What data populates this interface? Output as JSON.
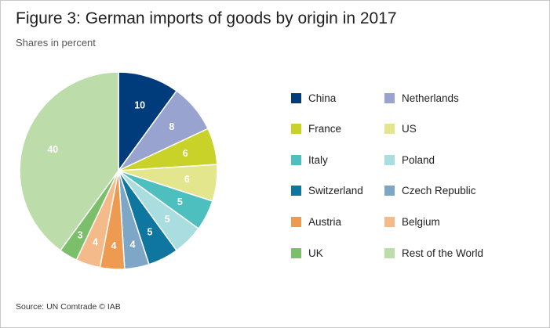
{
  "title": "Figure 3: German imports of goods by origin in 2017",
  "subtitle": "Shares in percent",
  "source": "Source: UN Comtrade © IAB",
  "chart_data": {
    "type": "pie",
    "start_angle_deg": 0,
    "direction": "clockwise",
    "slices": [
      {
        "label": "China",
        "value": 10,
        "color": "#003b7c"
      },
      {
        "label": "Netherlands",
        "value": 8,
        "color": "#98a3cf"
      },
      {
        "label": "France",
        "value": 6,
        "color": "#c8d228"
      },
      {
        "label": "US",
        "value": 6,
        "color": "#e3e68c"
      },
      {
        "label": "Italy",
        "value": 5,
        "color": "#4dbfbf"
      },
      {
        "label": "Poland",
        "value": 5,
        "color": "#a9dde0"
      },
      {
        "label": "Switzerland",
        "value": 5,
        "color": "#0f76a0"
      },
      {
        "label": "Czech Republic",
        "value": 4,
        "color": "#7ea6c6"
      },
      {
        "label": "Austria",
        "value": 4,
        "color": "#ee9a50"
      },
      {
        "label": "Belgium",
        "value": 4,
        "color": "#f4ba8a"
      },
      {
        "label": "UK",
        "value": 3,
        "color": "#7bbf6a"
      },
      {
        "label": "Rest of the World",
        "value": 40,
        "color": "#bcdcaa"
      }
    ],
    "legend_placement": "right"
  }
}
